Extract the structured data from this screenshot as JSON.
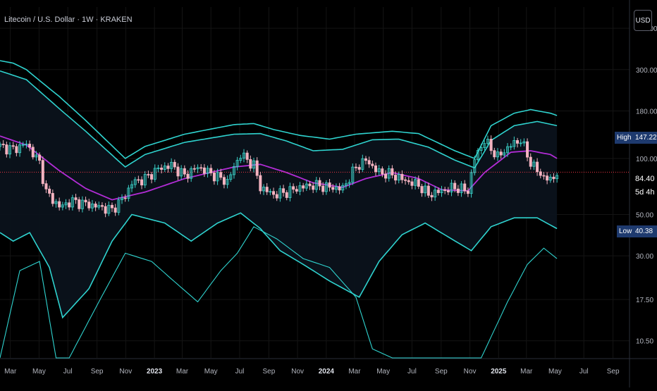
{
  "symbol": {
    "title": "Litecoin / U.S. Dollar · 1W · KRAKEN",
    "currency": "USD"
  },
  "colors": {
    "background": "#000000",
    "band": "#2fd3cf",
    "band_fill": "#0b121b",
    "ma": "#b22cd6",
    "candle_up": "#3bd1c8",
    "candle_down": "#f4b3c0",
    "grid": "#141414",
    "axis_text": "#b2b5be",
    "price_line": "#f23645"
  },
  "chart_data": {
    "type": "candlestick",
    "scale": "log",
    "ylim": [
      8.5,
      650
    ],
    "y_ticks": [
      500,
      300,
      180,
      100,
      50,
      30,
      17.5,
      10.5
    ],
    "y_tick_labels": [
      "500.00",
      "300.00",
      "180.00",
      "100.00",
      "50.00",
      "30.00",
      "17.50",
      "10.50"
    ],
    "x_ticks": [
      "Mar",
      "May",
      "Jul",
      "Sep",
      "Nov",
      "2023",
      "Mar",
      "May",
      "Jul",
      "Sep",
      "Nov",
      "2024",
      "Mar",
      "May",
      "Jul",
      "Sep",
      "Nov",
      "2025",
      "Mar",
      "May",
      "Jul",
      "Sep"
    ],
    "bold_x_ticks": [
      "2023",
      "2024",
      "2025"
    ],
    "x_range": [
      "2022-02-07",
      "2025-10-06"
    ],
    "x_tick_dates": [
      "2022-03-01",
      "2022-05-01",
      "2022-07-01",
      "2022-09-01",
      "2022-11-01",
      "2023-01-01",
      "2023-03-01",
      "2023-05-01",
      "2023-07-01",
      "2023-09-01",
      "2023-11-01",
      "2024-01-01",
      "2024-03-01",
      "2024-05-01",
      "2024-07-01",
      "2024-09-01",
      "2024-11-01",
      "2025-01-01",
      "2025-03-01",
      "2025-05-01",
      "2025-07-01",
      "2025-09-01"
    ],
    "close_series": {
      "x": [
        "2022-02-07",
        "2022-03-07",
        "2022-04-04",
        "2022-05-02",
        "2022-05-16",
        "2022-06-13",
        "2022-07-11",
        "2022-08-08",
        "2022-09-05",
        "2022-10-03",
        "2022-10-31",
        "2022-11-14",
        "2022-12-12",
        "2023-01-09",
        "2023-02-06",
        "2023-03-06",
        "2023-04-03",
        "2023-05-01",
        "2023-06-05",
        "2023-06-19",
        "2023-07-03",
        "2023-07-31",
        "2023-08-14",
        "2023-09-11",
        "2023-10-09",
        "2023-11-06",
        "2023-12-04",
        "2024-01-08",
        "2024-02-05",
        "2024-03-04",
        "2024-03-25",
        "2024-04-22",
        "2024-05-20",
        "2024-06-17",
        "2024-07-15",
        "2024-08-05",
        "2024-09-02",
        "2024-09-30",
        "2024-10-28",
        "2024-11-11",
        "2024-12-02",
        "2024-12-30",
        "2025-01-27",
        "2025-02-17",
        "2025-03-10",
        "2025-03-31",
        "2025-04-21",
        "2025-05-05"
      ],
      "y": [
        116,
        112,
        120,
        95,
        66,
        55,
        59,
        57,
        55,
        53,
        63,
        74,
        78,
        88,
        92,
        81,
        90,
        83,
        75,
        90,
        105,
        92,
        70,
        64,
        66,
        70,
        72,
        70,
        69,
        90,
        98,
        84,
        82,
        76,
        72,
        64,
        67,
        70,
        67,
        100,
        125,
        102,
        118,
        126,
        95,
        82,
        76,
        84.4
      ]
    },
    "moving_average": {
      "x": [
        "2022-02-07",
        "2022-04-04",
        "2022-06-13",
        "2022-08-08",
        "2022-10-03",
        "2022-12-12",
        "2023-03-06",
        "2023-06-19",
        "2023-08-14",
        "2023-10-09",
        "2023-12-04",
        "2024-02-05",
        "2024-03-25",
        "2024-05-20",
        "2024-07-15",
        "2024-09-02",
        "2024-10-28",
        "2024-12-02",
        "2025-01-27",
        "2025-03-10",
        "2025-04-21",
        "2025-05-05"
      ],
      "y": [
        132,
        118,
        86,
        69,
        60,
        66,
        78,
        90,
        93,
        84,
        74,
        70,
        78,
        84,
        78,
        68,
        67,
        84,
        108,
        110,
        105,
        100
      ]
    },
    "band_upper2": {
      "x": [
        "2022-02-07",
        "2022-03-07",
        "2022-04-04",
        "2022-05-02",
        "2022-06-13",
        "2022-08-08",
        "2022-10-31",
        "2022-12-12",
        "2023-03-06",
        "2023-06-19",
        "2023-07-31",
        "2023-09-11",
        "2023-11-06",
        "2024-01-08",
        "2024-03-04",
        "2024-05-20",
        "2024-07-15",
        "2024-09-30",
        "2024-11-11",
        "2024-12-16",
        "2025-02-03",
        "2025-03-10",
        "2025-04-21",
        "2025-05-05"
      ],
      "y": [
        335,
        325,
        300,
        262,
        215,
        160,
        100,
        116,
        135,
        152,
        154,
        143,
        133,
        127,
        135,
        140,
        136,
        110,
        100,
        150,
        175,
        183,
        175,
        170
      ]
    },
    "band_upper1": {
      "x": [
        "2022-02-07",
        "2022-04-04",
        "2022-06-13",
        "2022-08-08",
        "2022-10-31",
        "2022-12-12",
        "2023-03-06",
        "2023-06-19",
        "2023-08-14",
        "2023-10-09",
        "2023-12-04",
        "2024-02-05",
        "2024-04-08",
        "2024-06-03",
        "2024-08-05",
        "2024-09-30",
        "2024-11-11",
        "2024-12-16",
        "2025-02-03",
        "2025-03-24",
        "2025-05-05"
      ],
      "y": [
        295,
        265,
        185,
        140,
        90,
        105,
        122,
        135,
        136,
        124,
        110,
        112,
        126,
        127,
        115,
        98,
        89,
        125,
        150,
        158,
        150
      ]
    },
    "band_lower1": {
      "x": [
        "2022-02-07",
        "2022-03-07",
        "2022-04-11",
        "2022-05-23",
        "2022-06-20",
        "2022-08-15",
        "2022-10-03",
        "2022-11-14",
        "2023-01-23",
        "2023-03-20",
        "2023-05-15",
        "2023-07-03",
        "2023-08-14",
        "2023-09-25",
        "2023-11-13",
        "2024-01-08",
        "2024-03-11",
        "2024-04-22",
        "2024-06-10",
        "2024-07-29",
        "2024-09-23",
        "2024-11-04",
        "2024-12-16",
        "2025-02-03",
        "2025-03-24",
        "2025-05-05"
      ],
      "y": [
        40,
        36,
        40,
        26,
        14,
        20,
        36,
        50,
        45,
        36,
        45,
        51,
        42,
        32,
        27,
        22,
        18,
        28,
        39,
        45,
        37,
        32,
        43,
        48,
        48,
        42
      ]
    },
    "band_lower2": {
      "x": [
        "2022-02-07",
        "2022-03-21",
        "2022-05-02",
        "2022-06-06",
        "2022-07-04",
        "2022-09-05",
        "2022-10-31",
        "2022-12-26",
        "2023-02-20",
        "2023-04-03",
        "2023-05-22",
        "2023-06-26",
        "2023-07-31",
        "2023-09-18",
        "2023-11-13",
        "2024-01-08",
        "2024-03-04",
        "2024-04-08",
        "2024-05-20",
        "2024-07-01",
        "2024-08-26",
        "2024-10-07",
        "2024-11-11",
        "2024-11-25",
        "2025-01-20",
        "2025-03-03",
        "2025-04-07",
        "2025-05-05"
      ],
      "y": [
        8.5,
        25,
        28,
        8.5,
        8.5,
        17,
        31,
        28,
        21,
        17,
        25,
        31,
        43,
        37,
        29,
        26,
        18,
        9.5,
        8.5,
        8.5,
        8.5,
        8.5,
        8.5,
        8.5,
        17,
        27,
        33,
        29
      ]
    },
    "last_price": 84.4,
    "high_marker": {
      "label": "High",
      "value": "147.22"
    },
    "low_marker": {
      "label": "Low",
      "value": "40.38"
    },
    "last_price_label": "84.40",
    "countdown": "5d 4h"
  }
}
